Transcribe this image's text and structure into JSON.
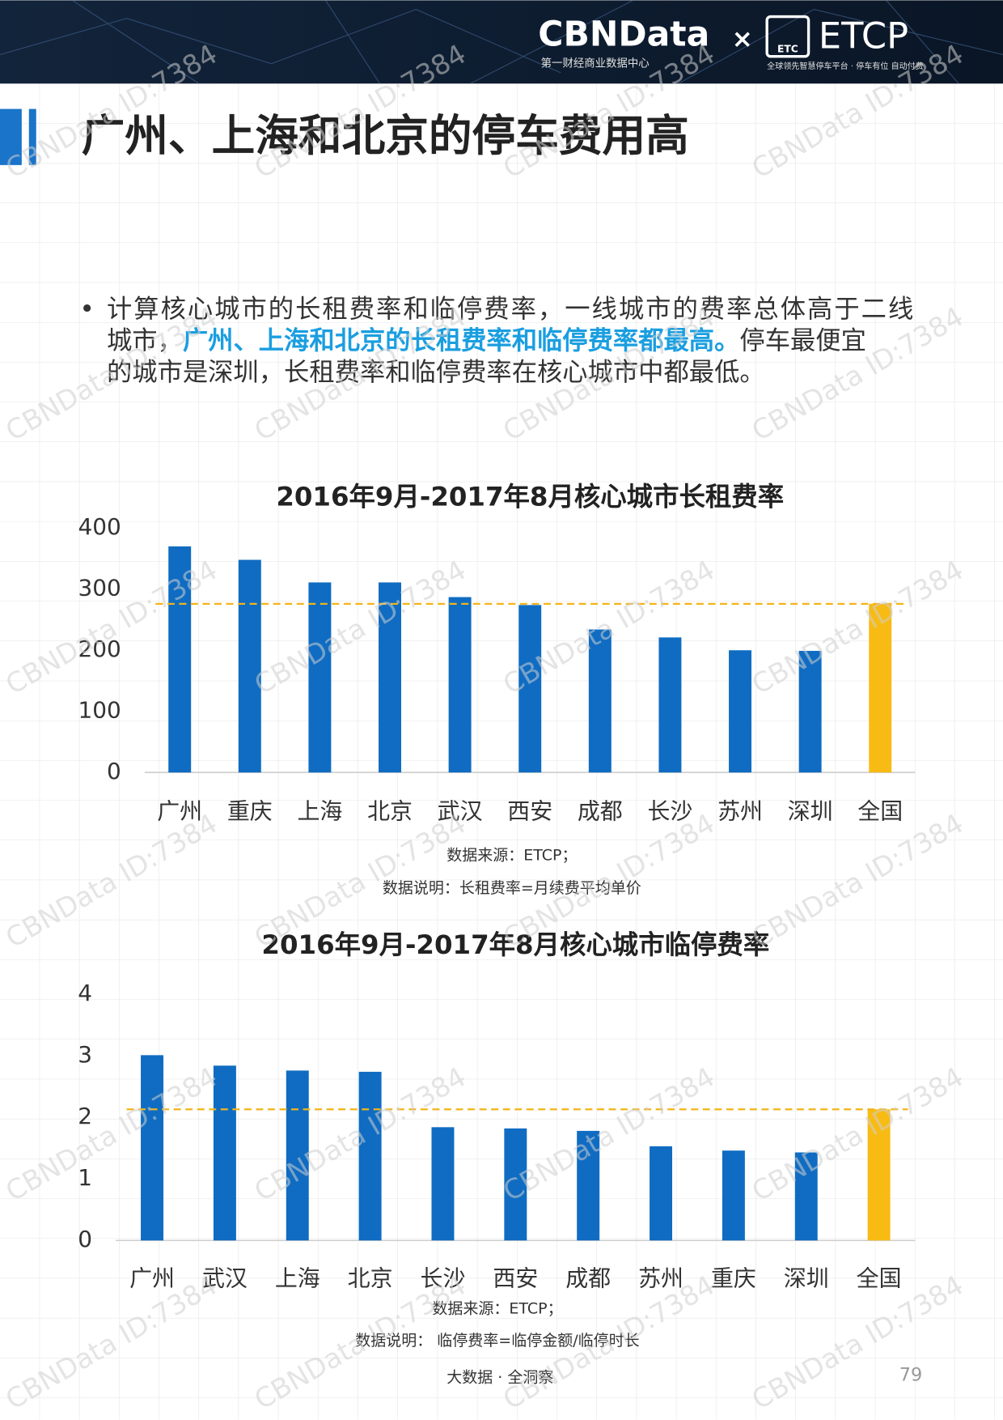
{
  "header": {
    "brand": "CBNData",
    "times": "×",
    "partner": "ETCP",
    "brand_sub": "第一财经商业数据中心",
    "partner_sub": "全球领先智慧停车平台 · 停车有位  自动付费",
    "logo_text": "ETC"
  },
  "title": "广州、上海和北京的停车费用高",
  "body": {
    "bullet": "•",
    "line1": "计算核心城市的长租费率和临停费率，一线城市的费率总体高于二线",
    "line2_before": "城市，",
    "highlight": "广州、上海和北京的长租费率和临停费率都最高。",
    "line2_after": "停车最便宜",
    "line3": "的城市是深圳，长租费率和临停费率在核心城市中都最低。"
  },
  "watermark": "CBNData ID:7384",
  "chart_data": [
    {
      "type": "bar",
      "title": "2016年9月-2017年8月核心城市长租费率",
      "categories": [
        "广州",
        "重庆",
        "上海",
        "北京",
        "武汉",
        "西安",
        "成都",
        "长沙",
        "苏州",
        "深圳",
        "全国"
      ],
      "values": [
        370,
        348,
        311,
        311,
        287,
        274,
        234,
        221,
        200,
        199,
        276
      ],
      "colors": [
        "#0f6cc2",
        "#0f6cc2",
        "#0f6cc2",
        "#0f6cc2",
        "#0f6cc2",
        "#0f6cc2",
        "#0f6cc2",
        "#0f6cc2",
        "#0f6cc2",
        "#0f6cc2",
        "#f8bb14"
      ],
      "ylim": [
        0,
        400
      ],
      "yticks": [
        0,
        100,
        200,
        300,
        400
      ],
      "notes": [
        "数据来源：ETCP；",
        "数据说明：长租费率=月续费平均单价"
      ]
    },
    {
      "type": "bar",
      "title": "2016年9月-2017年8月核心城市临停费率",
      "categories": [
        "广州",
        "武汉",
        "上海",
        "北京",
        "长沙",
        "西安",
        "成都",
        "苏州",
        "重庆",
        "深圳",
        "全国"
      ],
      "values": [
        3.01,
        2.84,
        2.76,
        2.74,
        1.84,
        1.82,
        1.78,
        1.53,
        1.46,
        1.43,
        2.13
      ],
      "colors": [
        "#0f6cc2",
        "#0f6cc2",
        "#0f6cc2",
        "#0f6cc2",
        "#0f6cc2",
        "#0f6cc2",
        "#0f6cc2",
        "#0f6cc2",
        "#0f6cc2",
        "#0f6cc2",
        "#f8bb14"
      ],
      "ylim": [
        0,
        4
      ],
      "yticks": [
        0,
        1,
        2,
        3,
        4
      ],
      "notes": [
        "数据来源：ETCP；",
        "数据说明：  临停费率=临停金额/临停时长"
      ]
    }
  ],
  "footer": {
    "slogan": "大数据 · 全洞察",
    "page": "79"
  }
}
